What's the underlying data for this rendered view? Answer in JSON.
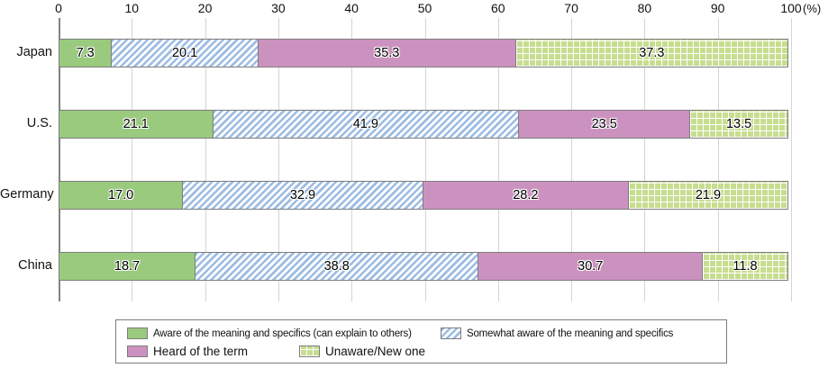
{
  "chart_data": {
    "type": "bar",
    "orientation": "horizontal-stacked",
    "title": "",
    "categories": [
      "Japan",
      "U.S.",
      "Germany",
      "China"
    ],
    "series": [
      {
        "name": "Aware of the meaning and specifics (can explain to others)",
        "pattern": "solid-green",
        "color": "#9aca7e",
        "values": [
          7.3,
          21.1,
          17.0,
          18.7
        ]
      },
      {
        "name": "Somewhat aware of the meaning and specifics",
        "pattern": "diagonal-blue",
        "color": "#9cbce3",
        "values": [
          20.1,
          41.9,
          32.9,
          38.8
        ]
      },
      {
        "name": "Heard of the term",
        "pattern": "solid-pink",
        "color": "#cc92bf",
        "values": [
          35.3,
          23.5,
          28.2,
          30.7
        ]
      },
      {
        "name": "Unaware/New one",
        "pattern": "grid-green",
        "color": "#c7dd8f",
        "values": [
          37.3,
          13.5,
          21.9,
          11.8
        ]
      }
    ],
    "axis": {
      "min": 0,
      "max": 100,
      "ticks": [
        0,
        10,
        20,
        30,
        40,
        50,
        60,
        70,
        80,
        90,
        100
      ],
      "unit_label": "(%)"
    },
    "grid": true,
    "legend_position": "bottom",
    "value_label_decimals": 1
  }
}
